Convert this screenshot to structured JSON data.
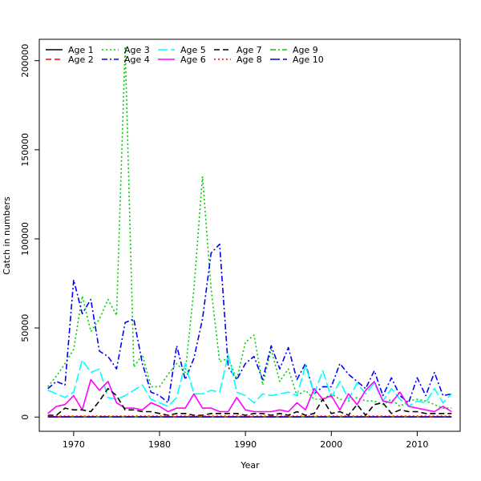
{
  "chart_data": {
    "type": "line",
    "title": "",
    "xlabel": "Year",
    "ylabel": "Catch in numbers",
    "xlim": [
      1966,
      2015
    ],
    "ylim": [
      -8000,
      212000
    ],
    "x_ticks": [
      1970,
      1980,
      1990,
      2000,
      2010
    ],
    "y_ticks": [
      0,
      50000,
      100000,
      150000,
      200000
    ],
    "legend_position": "top-left",
    "grid": false,
    "x": [
      1967,
      1968,
      1969,
      1970,
      1971,
      1972,
      1973,
      1974,
      1975,
      1976,
      1977,
      1978,
      1979,
      1980,
      1981,
      1982,
      1983,
      1984,
      1985,
      1986,
      1987,
      1988,
      1989,
      1990,
      1991,
      1992,
      1993,
      1994,
      1995,
      1996,
      1997,
      1998,
      1999,
      2000,
      2001,
      2002,
      2003,
      2004,
      2005,
      2006,
      2007,
      2008,
      2009,
      2010,
      2011,
      2012,
      2013,
      2014
    ],
    "series": [
      {
        "name": "Age 1",
        "color": "#000000",
        "dash": "solid",
        "values": [
          200,
          100,
          100,
          100,
          100,
          100,
          100,
          100,
          100,
          100,
          100,
          100,
          100,
          100,
          100,
          100,
          100,
          100,
          100,
          100,
          100,
          100,
          100,
          100,
          100,
          100,
          100,
          100,
          100,
          100,
          100,
          100,
          100,
          100,
          100,
          100,
          100,
          100,
          100,
          100,
          100,
          100,
          100,
          100,
          100,
          100,
          100,
          100
        ]
      },
      {
        "name": "Age 2",
        "color": "#ff0000",
        "dash": "dashed",
        "values": [
          100,
          100,
          100,
          100,
          100,
          100,
          100,
          100,
          100,
          100,
          100,
          100,
          100,
          100,
          100,
          100,
          100,
          100,
          100,
          100,
          100,
          100,
          100,
          100,
          100,
          100,
          100,
          100,
          100,
          100,
          100,
          100,
          100,
          100,
          100,
          100,
          100,
          100,
          100,
          100,
          100,
          100,
          100,
          100,
          100,
          100,
          100,
          100
        ]
      },
      {
        "name": "Age 3",
        "color": "#00cd00",
        "dash": "dotted",
        "values": [
          17000,
          23000,
          30000,
          38000,
          68000,
          48000,
          55000,
          66000,
          57000,
          208000,
          28000,
          35000,
          17000,
          17000,
          24000,
          30000,
          25000,
          72000,
          135000,
          72000,
          31000,
          33000,
          21000,
          42000,
          46000,
          18000,
          38000,
          20000,
          27000,
          12000,
          15000,
          10000,
          10000,
          13000,
          10000,
          9000,
          11000,
          9000,
          9000,
          7000,
          10000,
          6000,
          9000,
          10000,
          9000,
          7000,
          5000,
          5000
        ]
      },
      {
        "name": "Age 4",
        "color": "#0000ff",
        "dash": "dashdot",
        "values": [
          16000,
          20000,
          18000,
          77000,
          58000,
          66000,
          37000,
          34000,
          27000,
          53000,
          55000,
          30000,
          14000,
          12000,
          8000,
          40000,
          21000,
          33000,
          55000,
          92000,
          97000,
          28000,
          21000,
          30000,
          34000,
          21000,
          40000,
          27000,
          39000,
          21000,
          30000,
          13000,
          17000,
          17000,
          30000,
          24000,
          20000,
          16000,
          26000,
          12000,
          22000,
          12000,
          8000,
          22000,
          12000,
          25000,
          12000,
          13000
        ]
      },
      {
        "name": "Age 5",
        "color": "#00ffff",
        "dash": "longdash",
        "values": [
          15000,
          13000,
          11000,
          14000,
          32000,
          25000,
          27000,
          11000,
          10000,
          12000,
          15000,
          18000,
          10000,
          8000,
          6000,
          11000,
          30000,
          13000,
          13000,
          15000,
          14000,
          35000,
          14000,
          12000,
          8000,
          13000,
          12000,
          13000,
          14000,
          12000,
          29000,
          13000,
          26000,
          11000,
          20000,
          10000,
          19000,
          13000,
          19000,
          9000,
          16000,
          10000,
          6000,
          9000,
          8000,
          16000,
          8000,
          13000
        ]
      },
      {
        "name": "Age 6",
        "color": "#ff00ff",
        "dash": "solid",
        "values": [
          2000,
          6000,
          7000,
          12000,
          4000,
          21000,
          15000,
          20000,
          8000,
          5000,
          5000,
          4000,
          8000,
          6000,
          3000,
          5000,
          5000,
          13000,
          5000,
          5000,
          3000,
          3000,
          11000,
          4000,
          3000,
          3000,
          3000,
          4000,
          3000,
          8000,
          4000,
          16000,
          10000,
          12000,
          4000,
          13000,
          7000,
          15000,
          20000,
          9000,
          8000,
          14000,
          6000,
          5000,
          4000,
          3000,
          6000,
          3000
        ]
      },
      {
        "name": "Age 7",
        "color": "#000000",
        "dash": "dashed",
        "values": [
          1000,
          1000,
          5000,
          4000,
          4000,
          3000,
          9000,
          16000,
          12000,
          4000,
          4000,
          3000,
          3000,
          2000,
          1000,
          2000,
          2000,
          1000,
          1000,
          2000,
          2000,
          2000,
          2000,
          1000,
          2000,
          2000,
          1000,
          2000,
          1000,
          3000,
          1000,
          2000,
          10000,
          2000,
          3000,
          1000,
          7000,
          1000,
          7000,
          8000,
          2000,
          4000,
          3000,
          3000,
          2000,
          2000,
          2000,
          2000
        ]
      },
      {
        "name": "Age 8",
        "color": "#ff0000",
        "dash": "dotted",
        "values": [
          500,
          500,
          500,
          500,
          500,
          500,
          500,
          500,
          500,
          500,
          500,
          500,
          500,
          500,
          500,
          500,
          500,
          500,
          500,
          500,
          500,
          500,
          500,
          500,
          500,
          500,
          500,
          500,
          500,
          500,
          500,
          500,
          500,
          500,
          500,
          500,
          500,
          500,
          500,
          500,
          500,
          500,
          500,
          500,
          500,
          500,
          500,
          500
        ]
      },
      {
        "name": "Age 9",
        "color": "#00cd00",
        "dash": "dashdot",
        "values": [
          200,
          200,
          200,
          200,
          200,
          200,
          200,
          200,
          200,
          200,
          200,
          200,
          200,
          200,
          200,
          200,
          200,
          200,
          200,
          200,
          200,
          200,
          200,
          200,
          200,
          200,
          200,
          200,
          200,
          200,
          200,
          200,
          200,
          200,
          200,
          200,
          200,
          200,
          200,
          200,
          200,
          200,
          200,
          200,
          200,
          200,
          200,
          200
        ]
      },
      {
        "name": "Age 10",
        "color": "#0000ff",
        "dash": "longdash",
        "values": [
          100,
          100,
          100,
          100,
          100,
          100,
          100,
          100,
          100,
          100,
          100,
          100,
          100,
          100,
          100,
          100,
          100,
          100,
          100,
          100,
          100,
          100,
          100,
          100,
          100,
          100,
          100,
          100,
          100,
          100,
          100,
          100,
          100,
          100,
          100,
          100,
          100,
          100,
          100,
          100,
          100,
          100,
          100,
          100,
          100,
          100,
          100,
          100
        ]
      }
    ]
  }
}
